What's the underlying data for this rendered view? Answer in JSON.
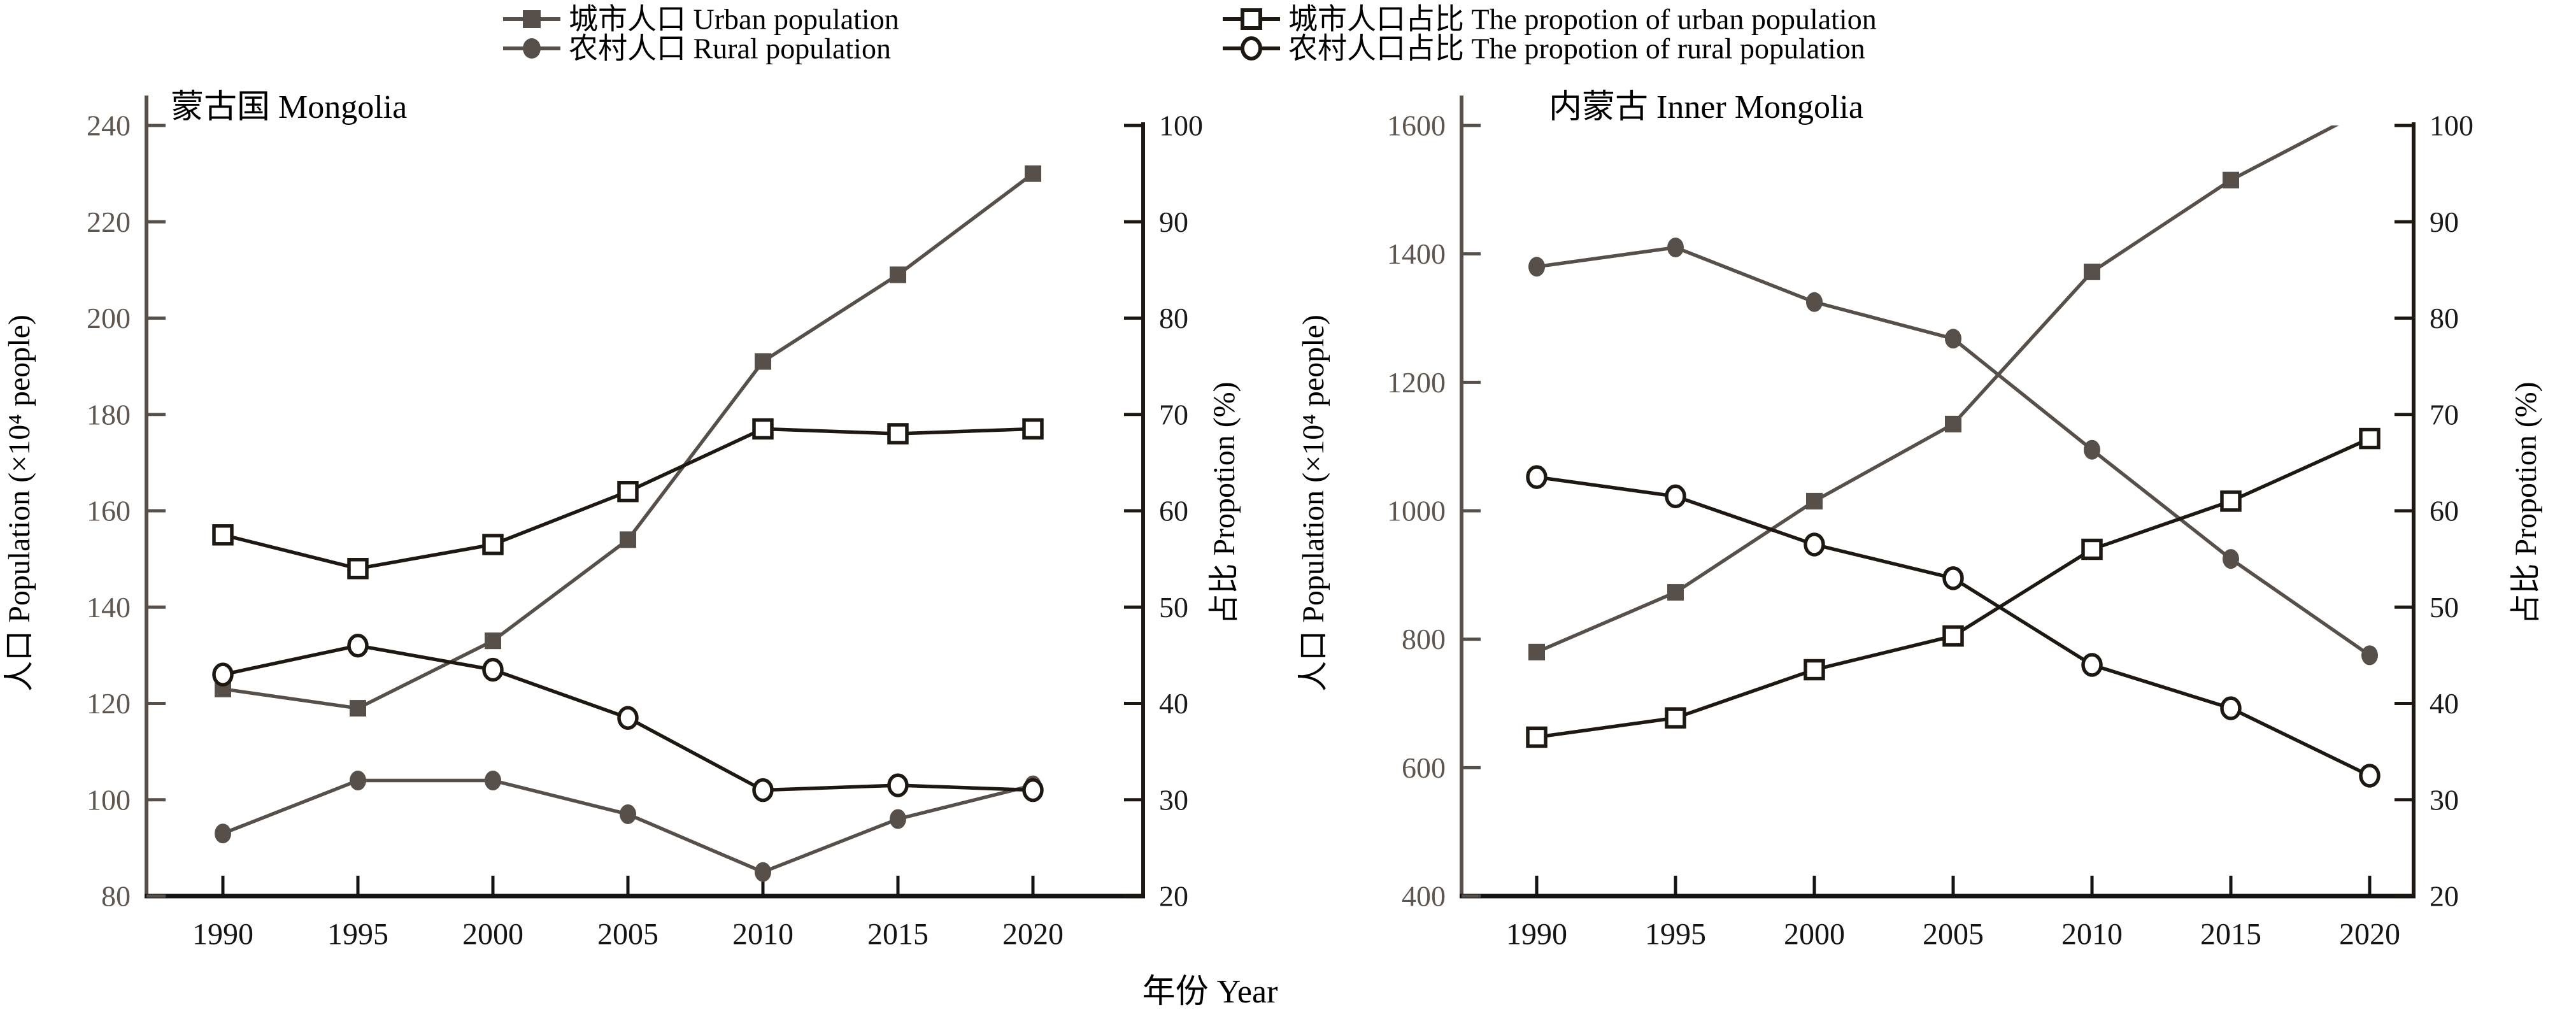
{
  "figure": {
    "x_caption": "年份 Year",
    "colors": {
      "population_series": "#57504a",
      "proportion_series": "#1d1812",
      "population_tick_text": "#5e564f",
      "proportion_tick_text": "#1a1a1a",
      "background": "#ffffff"
    },
    "legend": [
      {
        "id": "urban-pop",
        "marker": "square-filled",
        "label": "城市人口 Urban population"
      },
      {
        "id": "rural-pop",
        "marker": "circle-filled",
        "label": "农村人口 Rural population"
      },
      {
        "id": "urban-pct",
        "marker": "square-open",
        "label": "城市人口占比 The propotion of urban population"
      },
      {
        "id": "rural-pct",
        "marker": "circle-open",
        "label": "农村人口占比 The propotion of rural population"
      }
    ]
  },
  "chart_data": [
    {
      "type": "line",
      "title": "蒙古国 Mongolia",
      "x": [
        1990,
        1995,
        2000,
        2005,
        2010,
        2015,
        2020
      ],
      "xlabel": "年份 Year",
      "ylabel_left": "人口 Population (×10⁴ people)",
      "ylabel_right": "占比 Propotion (%)",
      "ylim_left": [
        80,
        240
      ],
      "ytick_step_left": 20,
      "ylim_right": [
        20,
        100
      ],
      "ytick_step_right": 10,
      "grid": false,
      "series": [
        {
          "id": "urban-pop",
          "name": "城市人口 Urban population",
          "axis": "left",
          "marker": "square-filled",
          "values": [
            123,
            119,
            133,
            154,
            191,
            209,
            230
          ]
        },
        {
          "id": "rural-pop",
          "name": "农村人口 Rural population",
          "axis": "left",
          "marker": "circle-filled",
          "values": [
            93,
            104,
            104,
            97,
            85,
            96,
            103
          ]
        },
        {
          "id": "urban-pct",
          "name": "城市人口占比 The propotion of urban population",
          "axis": "right",
          "marker": "square-open",
          "values": [
            57.5,
            54,
            56.5,
            62,
            68.5,
            68,
            68.5
          ]
        },
        {
          "id": "rural-pct",
          "name": "农村人口占比 The propotion of rural population",
          "axis": "right",
          "marker": "circle-open",
          "values": [
            43,
            46,
            43.5,
            38.5,
            31,
            31.5,
            31
          ]
        }
      ]
    },
    {
      "type": "line",
      "title": "内蒙古 Inner Mongolia",
      "x": [
        1990,
        1995,
        2000,
        2005,
        2010,
        2015,
        2020
      ],
      "xlabel": "年份 Year",
      "ylabel_left": "人口 Population (×10⁴ people)",
      "ylabel_right": "占比 Propotion (%)",
      "ylim_left": [
        400,
        1600
      ],
      "ytick_step_left": 200,
      "ylim_right": [
        20,
        100
      ],
      "ytick_step_right": 10,
      "grid": false,
      "series": [
        {
          "id": "urban-pop",
          "name": "城市人口 Urban population",
          "axis": "left",
          "marker": "square-filled",
          "values": [
            780,
            873,
            1015,
            1135,
            1372,
            1515,
            1628
          ]
        },
        {
          "id": "rural-pop",
          "name": "农村人口 Rural population",
          "axis": "left",
          "marker": "circle-filled",
          "values": [
            1380,
            1410,
            1325,
            1268,
            1095,
            925,
            775
          ]
        },
        {
          "id": "urban-pct",
          "name": "城市人口占比 The propotion of urban population",
          "axis": "right",
          "marker": "square-open",
          "values": [
            36.5,
            38.5,
            43.5,
            47,
            56,
            61,
            67.5
          ]
        },
        {
          "id": "rural-pct",
          "name": "农村人口占比 The propotion of rural population",
          "axis": "right",
          "marker": "circle-open",
          "values": [
            63.5,
            61.5,
            56.5,
            53,
            44,
            39.5,
            32.5
          ]
        }
      ]
    }
  ]
}
